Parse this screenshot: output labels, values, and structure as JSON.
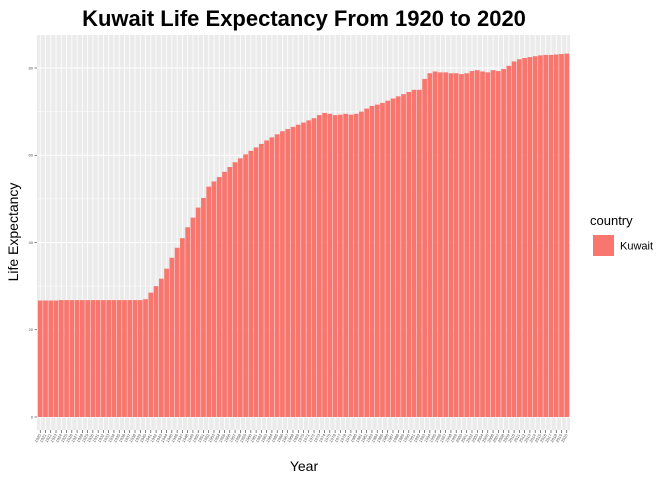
{
  "chart_data": {
    "type": "bar",
    "title": "Kuwait Life Expectancy From 1920 to 2020",
    "xlabel": "Year",
    "ylabel": "Life Expectancy",
    "ylim": [
      0,
      86
    ],
    "yticks": [
      0,
      20,
      40,
      60,
      80
    ],
    "grid": true,
    "legend": {
      "title": "country",
      "placement": "right"
    },
    "bar_color": "#F8766D",
    "panel_color": "#EBEBEB",
    "categories": [
      "1920",
      "1921",
      "1922",
      "1923",
      "1924",
      "1925",
      "1926",
      "1927",
      "1928",
      "1929",
      "1930",
      "1931",
      "1932",
      "1933",
      "1934",
      "1935",
      "1936",
      "1937",
      "1938",
      "1939",
      "1940",
      "1941",
      "1942",
      "1943",
      "1944",
      "1945",
      "1946",
      "1947",
      "1948",
      "1949",
      "1950",
      "1951",
      "1952",
      "1953",
      "1954",
      "1955",
      "1956",
      "1957",
      "1958",
      "1959",
      "1960",
      "1961",
      "1962",
      "1963",
      "1964",
      "1965",
      "1966",
      "1967",
      "1968",
      "1969",
      "1970",
      "1971",
      "1972",
      "1973",
      "1974",
      "1975",
      "1976",
      "1977",
      "1978",
      "1979",
      "1980",
      "1981",
      "1982",
      "1983",
      "1984",
      "1985",
      "1986",
      "1987",
      "1988",
      "1989",
      "1990",
      "1991",
      "1992",
      "1993",
      "1994",
      "1995",
      "1996",
      "1997",
      "1998",
      "1999",
      "2000",
      "2001",
      "2002",
      "2003",
      "2004",
      "2005",
      "2006",
      "2007",
      "2008",
      "2009",
      "2010",
      "2011",
      "2012",
      "2013",
      "2014",
      "2015",
      "2016",
      "2017",
      "2018",
      "2019",
      "2020"
    ],
    "series": [
      {
        "name": "Kuwait",
        "values": [
          26.7,
          26.7,
          26.7,
          26.7,
          26.8,
          26.8,
          26.8,
          26.8,
          26.8,
          26.8,
          26.8,
          26.8,
          26.8,
          26.8,
          26.8,
          26.8,
          26.8,
          26.8,
          26.8,
          26.8,
          27.0,
          28.5,
          30.0,
          31.7,
          34.0,
          36.5,
          38.8,
          41.0,
          43.5,
          45.7,
          48.0,
          50.2,
          52.8,
          54.0,
          55.0,
          56.2,
          57.3,
          58.4,
          59.3,
          60.2,
          61.0,
          61.8,
          62.6,
          63.4,
          64.1,
          64.8,
          65.5,
          66.0,
          66.5,
          67.0,
          67.5,
          68.0,
          68.5,
          69.2,
          69.7,
          69.5,
          69.2,
          69.3,
          69.5,
          69.3,
          69.5,
          70.0,
          70.7,
          71.3,
          71.6,
          72.0,
          72.5,
          73.0,
          73.5,
          74.0,
          74.5,
          75.0,
          75.0,
          77.5,
          78.8,
          79.2,
          79.0,
          79.0,
          78.8,
          78.8,
          78.6,
          78.8,
          79.3,
          79.5,
          79.2,
          79.0,
          79.5,
          79.3,
          79.8,
          80.5,
          81.5,
          82.0,
          82.3,
          82.5,
          82.7,
          82.9,
          83.0,
          83.0,
          83.1,
          83.2,
          83.3
        ]
      }
    ]
  }
}
